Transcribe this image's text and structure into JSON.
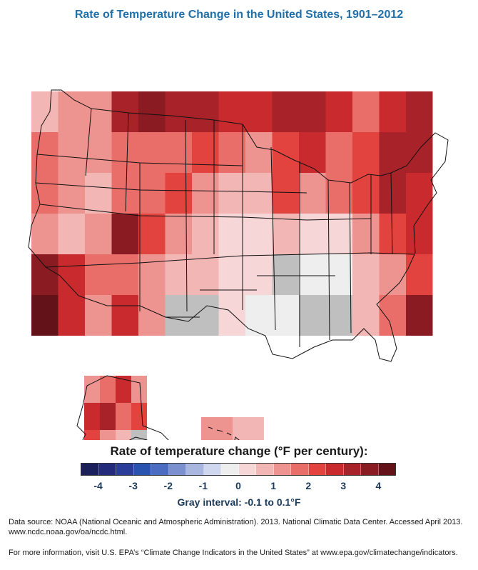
{
  "title": "Rate of Temperature Change in the United States, 1901–2012",
  "map": {
    "region": "United States (contiguous, Alaska, Hawaii)",
    "cells_rate": [
      [
        0.6,
        1.0,
        1.4,
        3.2,
        3.5,
        3.0,
        3.3,
        2.8,
        2.8,
        3.0,
        3.3,
        2.7,
        1.5,
        2.9,
        3.1
      ],
      [
        1.6,
        1.4,
        1.1,
        1.9,
        1.7,
        1.8,
        2.1,
        1.5,
        1.2,
        2.4,
        2.6,
        1.5,
        2.0,
        3.1,
        3.4
      ],
      [
        1.7,
        1.3,
        0.8,
        1.5,
        1.7,
        2.2,
        1.2,
        0.6,
        0.6,
        2.2,
        1.0,
        1.7,
        2.4,
        3.3,
        2.5
      ],
      [
        1.3,
        0.8,
        1.1,
        3.5,
        2.1,
        1.4,
        0.7,
        0.4,
        0.4,
        0.5,
        0.3,
        0.3,
        1.2,
        2.4,
        2.7
      ],
      [
        3.6,
        2.8,
        1.5,
        1.9,
        1.2,
        0.9,
        0.6,
        0.3,
        0.1,
        0.0,
        -0.5,
        -0.3,
        0.8,
        1.3,
        2.0
      ],
      [
        4.5,
        2.8,
        1.0,
        2.7,
        1.0,
        0.0,
        0.0,
        0.3,
        -0.3,
        -0.3,
        0.0,
        0.0,
        0.6,
        1.5,
        3.6
      ]
    ],
    "alaska_cells_rate": [
      [
        1.4,
        1.8,
        2.5,
        1.2
      ],
      [
        2.8,
        3.0,
        1.6,
        2.2
      ],
      [
        2.0,
        1.3,
        0.9,
        0.0
      ]
    ],
    "hawaii_cells_rate": [
      [
        1.0,
        0.5
      ]
    ],
    "gray_color": "#bfbfbf"
  },
  "legend": {
    "title": "Rate of temperature change (°F per century):",
    "tick_labels": [
      "-4",
      "-3",
      "-2",
      "-1",
      "0",
      "1",
      "2",
      "3",
      "4"
    ],
    "colors": [
      "#1b1f5c",
      "#232b7a",
      "#2a3d99",
      "#2a53b0",
      "#4b6cc0",
      "#7a90cf",
      "#a8b6e0",
      "#cfd7ef",
      "#eeeeee",
      "#f6d6d6",
      "#f2b6b4",
      "#ee9490",
      "#e96e6a",
      "#e2433f",
      "#c82a2e",
      "#a8222a",
      "#8a1b22",
      "#63121a"
    ],
    "gray_interval": "Gray interval: -0.1 to 0.1°F"
  },
  "footer": {
    "source_line1": "Data source: NOAA (National Oceanic and Atmospheric Administration). 2013. National Climatic Data Center. Accessed April 2013.",
    "source_line2": "www.ncdc.noaa.gov/oa/ncdc.html.",
    "more_info": "For more information, visit U.S. EPA’s “Climate Change Indicators in the United States” at www.epa.gov/climatechange/indicators."
  }
}
